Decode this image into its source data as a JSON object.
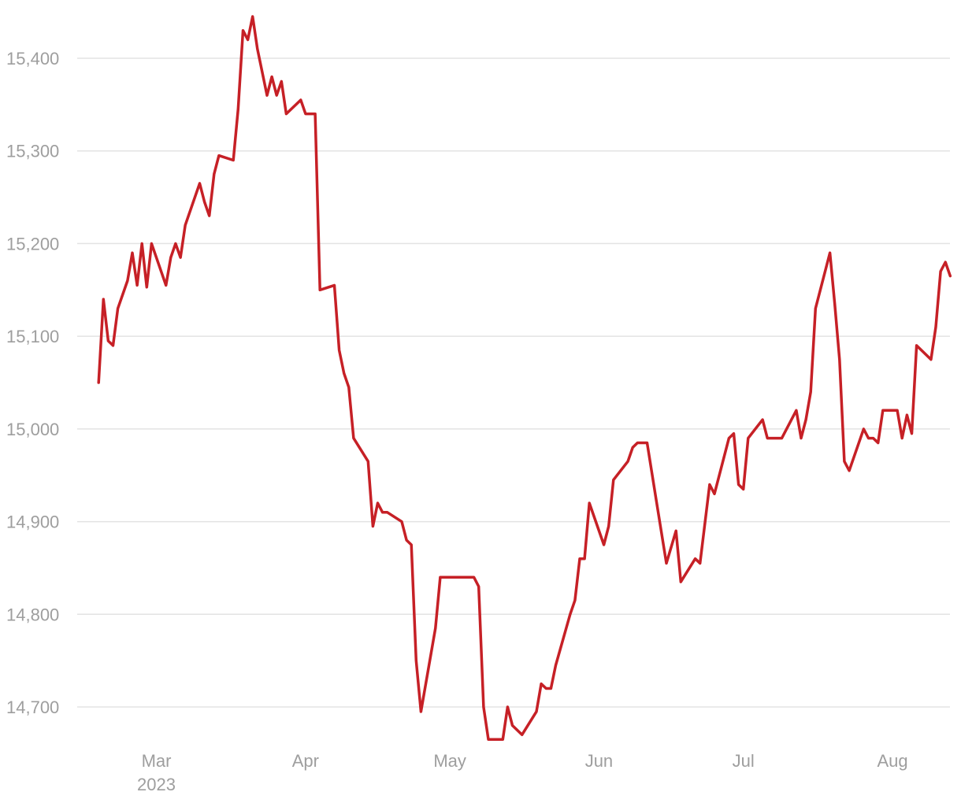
{
  "chart_data": {
    "type": "line",
    "title": "",
    "xlabel": "",
    "ylabel": "",
    "x_ticks": [
      {
        "date": "2023-03-01",
        "label": "Mar",
        "sublabel": "2023"
      },
      {
        "date": "2023-04-01",
        "label": "Apr",
        "sublabel": ""
      },
      {
        "date": "2023-05-01",
        "label": "May",
        "sublabel": ""
      },
      {
        "date": "2023-06-01",
        "label": "Jun",
        "sublabel": ""
      },
      {
        "date": "2023-07-01",
        "label": "Jul",
        "sublabel": ""
      },
      {
        "date": "2023-08-01",
        "label": "Aug",
        "sublabel": ""
      }
    ],
    "y_ticks": [
      {
        "value": 14700,
        "label": "14,700"
      },
      {
        "value": 14800,
        "label": "14,800"
      },
      {
        "value": 14900,
        "label": "14,900"
      },
      {
        "value": 15000,
        "label": "15,000"
      },
      {
        "value": 15100,
        "label": "15,100"
      },
      {
        "value": 15200,
        "label": "15,200"
      },
      {
        "value": 15300,
        "label": "15,300"
      },
      {
        "value": 15400,
        "label": "15,400"
      }
    ],
    "xlim": [
      "2023-02-15",
      "2023-08-10"
    ],
    "ylim": [
      14650,
      15460
    ],
    "grid": true,
    "colors": {
      "series": "#c62026",
      "grid": "#e3e3e3",
      "tick_text": "#9e9e9e"
    },
    "series": [
      {
        "points": [
          [
            "2023-02-17",
            15050
          ],
          [
            "2023-02-18",
            15140
          ],
          [
            "2023-02-19",
            15095
          ],
          [
            "2023-02-20",
            15090
          ],
          [
            "2023-02-21",
            15130
          ],
          [
            "2023-02-23",
            15160
          ],
          [
            "2023-02-24",
            15190
          ],
          [
            "2023-02-25",
            15155
          ],
          [
            "2023-02-26",
            15200
          ],
          [
            "2023-02-27",
            15153
          ],
          [
            "2023-02-28",
            15200
          ],
          [
            "2023-03-03",
            15155
          ],
          [
            "2023-03-04",
            15185
          ],
          [
            "2023-03-05",
            15200
          ],
          [
            "2023-03-06",
            15185
          ],
          [
            "2023-03-07",
            15220
          ],
          [
            "2023-03-10",
            15265
          ],
          [
            "2023-03-11",
            15245
          ],
          [
            "2023-03-12",
            15230
          ],
          [
            "2023-03-13",
            15275
          ],
          [
            "2023-03-14",
            15295
          ],
          [
            "2023-03-17",
            15290
          ],
          [
            "2023-03-18",
            15345
          ],
          [
            "2023-03-19",
            15430
          ],
          [
            "2023-03-20",
            15420
          ],
          [
            "2023-03-21",
            15445
          ],
          [
            "2023-03-22",
            15410
          ],
          [
            "2023-03-24",
            15360
          ],
          [
            "2023-03-25",
            15380
          ],
          [
            "2023-03-26",
            15360
          ],
          [
            "2023-03-27",
            15375
          ],
          [
            "2023-03-28",
            15340
          ],
          [
            "2023-03-31",
            15355
          ],
          [
            "2023-04-01",
            15340
          ],
          [
            "2023-04-03",
            15340
          ],
          [
            "2023-04-04",
            15150
          ],
          [
            "2023-04-07",
            15155
          ],
          [
            "2023-04-08",
            15085
          ],
          [
            "2023-04-09",
            15060
          ],
          [
            "2023-04-10",
            15045
          ],
          [
            "2023-04-11",
            14990
          ],
          [
            "2023-04-14",
            14965
          ],
          [
            "2023-04-15",
            14895
          ],
          [
            "2023-04-16",
            14920
          ],
          [
            "2023-04-17",
            14910
          ],
          [
            "2023-04-18",
            14910
          ],
          [
            "2023-04-21",
            14900
          ],
          [
            "2023-04-22",
            14880
          ],
          [
            "2023-04-23",
            14875
          ],
          [
            "2023-04-24",
            14750
          ],
          [
            "2023-04-25",
            14695
          ],
          [
            "2023-04-28",
            14785
          ],
          [
            "2023-04-29",
            14840
          ],
          [
            "2023-05-06",
            14840
          ],
          [
            "2023-05-07",
            14830
          ],
          [
            "2023-05-08",
            14700
          ],
          [
            "2023-05-09",
            14665
          ],
          [
            "2023-05-12",
            14665
          ],
          [
            "2023-05-13",
            14700
          ],
          [
            "2023-05-14",
            14680
          ],
          [
            "2023-05-16",
            14670
          ],
          [
            "2023-05-19",
            14695
          ],
          [
            "2023-05-20",
            14725
          ],
          [
            "2023-05-21",
            14720
          ],
          [
            "2023-05-22",
            14720
          ],
          [
            "2023-05-23",
            14745
          ],
          [
            "2023-05-26",
            14800
          ],
          [
            "2023-05-27",
            14815
          ],
          [
            "2023-05-28",
            14860
          ],
          [
            "2023-05-29",
            14860
          ],
          [
            "2023-05-30",
            14920
          ],
          [
            "2023-06-02",
            14875
          ],
          [
            "2023-06-03",
            14895
          ],
          [
            "2023-06-04",
            14945
          ],
          [
            "2023-06-07",
            14965
          ],
          [
            "2023-06-08",
            14980
          ],
          [
            "2023-06-09",
            14985
          ],
          [
            "2023-06-11",
            14985
          ],
          [
            "2023-06-13",
            14920
          ],
          [
            "2023-06-15",
            14855
          ],
          [
            "2023-06-17",
            14890
          ],
          [
            "2023-06-18",
            14835
          ],
          [
            "2023-06-21",
            14860
          ],
          [
            "2023-06-22",
            14855
          ],
          [
            "2023-06-24",
            14940
          ],
          [
            "2023-06-25",
            14930
          ],
          [
            "2023-06-28",
            14990
          ],
          [
            "2023-06-29",
            14995
          ],
          [
            "2023-06-30",
            14940
          ],
          [
            "2023-07-01",
            14935
          ],
          [
            "2023-07-02",
            14990
          ],
          [
            "2023-07-05",
            15010
          ],
          [
            "2023-07-06",
            14990
          ],
          [
            "2023-07-09",
            14990
          ],
          [
            "2023-07-12",
            15020
          ],
          [
            "2023-07-13",
            14990
          ],
          [
            "2023-07-14",
            15010
          ],
          [
            "2023-07-15",
            15040
          ],
          [
            "2023-07-16",
            15130
          ],
          [
            "2023-07-19",
            15190
          ],
          [
            "2023-07-20",
            15135
          ],
          [
            "2023-07-21",
            15075
          ],
          [
            "2023-07-22",
            14965
          ],
          [
            "2023-07-23",
            14955
          ],
          [
            "2023-07-26",
            15000
          ],
          [
            "2023-07-27",
            14990
          ],
          [
            "2023-07-28",
            14990
          ],
          [
            "2023-07-29",
            14985
          ],
          [
            "2023-07-30",
            15020
          ],
          [
            "2023-08-02",
            15020
          ],
          [
            "2023-08-03",
            14990
          ],
          [
            "2023-08-04",
            15015
          ],
          [
            "2023-08-05",
            14995
          ],
          [
            "2023-08-06",
            15090
          ],
          [
            "2023-08-09",
            15075
          ],
          [
            "2023-08-10",
            15110
          ],
          [
            "2023-08-11",
            15170
          ],
          [
            "2023-08-12",
            15180
          ],
          [
            "2023-08-13",
            15165
          ]
        ]
      }
    ]
  }
}
